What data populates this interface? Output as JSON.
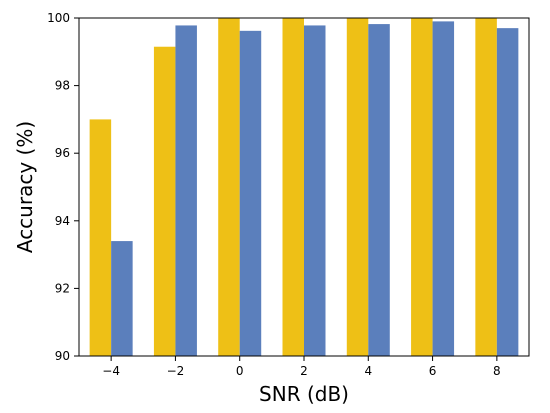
{
  "chart_data": {
    "type": "bar",
    "title": "",
    "xlabel": "SNR (dB)",
    "ylabel": "Accuracy (%)",
    "categories": [
      "−4",
      "−2",
      "0",
      "2",
      "4",
      "6",
      "8"
    ],
    "series": [
      {
        "color": "#EEC016",
        "values": [
          97.0,
          99.15,
          100.0,
          100.0,
          100.0,
          100.0,
          100.0
        ]
      },
      {
        "color": "#5B7FBC",
        "values": [
          93.4,
          99.78,
          99.62,
          99.78,
          99.82,
          99.9,
          99.7
        ]
      }
    ],
    "ylim": [
      90,
      100
    ],
    "yticks": [
      90,
      92,
      94,
      96,
      98,
      100
    ],
    "ytick_labels": [
      "90",
      "92",
      "94",
      "96",
      "98",
      "100"
    ],
    "grid": false,
    "legend": "none"
  }
}
